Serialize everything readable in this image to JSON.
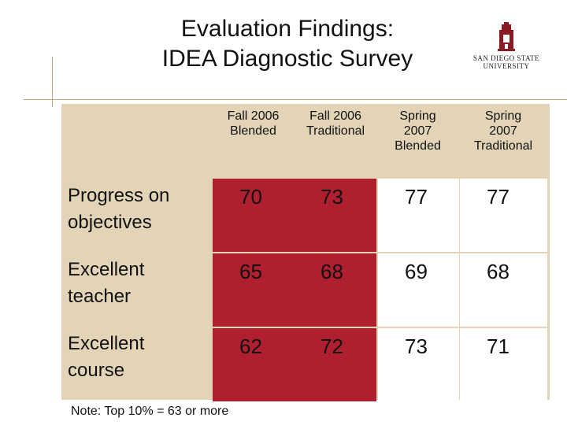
{
  "slide": {
    "title_line1": "Evaluation Findings:",
    "title_line2": "IDEA Diagnostic Survey",
    "logo_text_line1": "SAN DIEGO STATE",
    "logo_text_line2": "UNIVERSITY",
    "note": "Note: Top 10% = 63 or more"
  },
  "table": {
    "columns": [
      {
        "line1": "Fall 2006",
        "line2": "Blended",
        "line3": ""
      },
      {
        "line1": "Fall 2006",
        "line2": "Traditional",
        "line3": ""
      },
      {
        "line1": "Spring",
        "line2": "2007",
        "line3": "Blended"
      },
      {
        "line1": "Spring",
        "line2": "2007",
        "line3": "Traditional"
      }
    ],
    "rows": [
      {
        "line1": "Progress on",
        "line2": "objectives",
        "values": [
          "70",
          "73",
          "77",
          "77"
        ]
      },
      {
        "line1": "Excellent",
        "line2": "teacher",
        "values": [
          "65",
          "68",
          "69",
          "68"
        ]
      },
      {
        "line1": "Excellent",
        "line2": "course",
        "values": [
          "62",
          "72",
          "73",
          "71"
        ]
      }
    ]
  },
  "colors": {
    "background": "#ffffff",
    "accent_line": "#c8a77e",
    "panel": "#e3d4b8",
    "highlight": "#b01f2f",
    "text": "#111111"
  }
}
